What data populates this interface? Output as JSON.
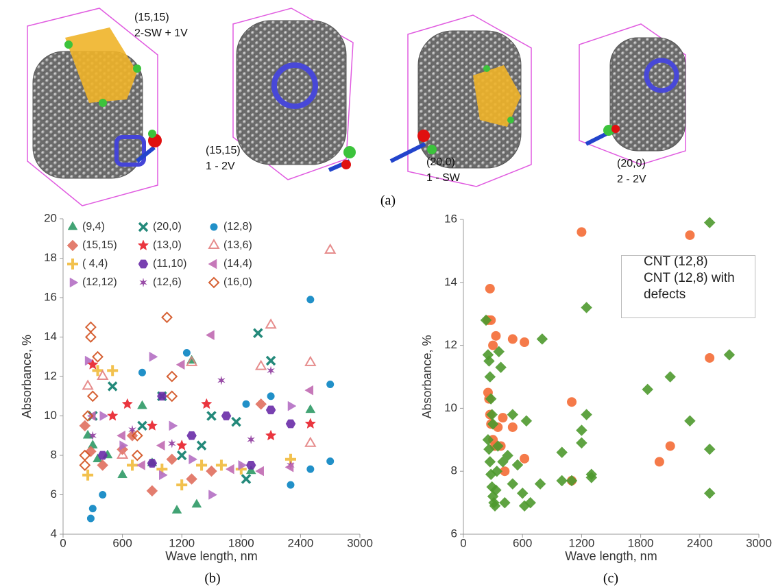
{
  "panel_a": {
    "label": "(a)",
    "structures": [
      {
        "lines": [
          "(15,15)",
          "2-SW + 1V"
        ]
      },
      {
        "lines": [
          "(15,15)",
          "1 - 2V"
        ]
      },
      {
        "lines": [
          "(20,0)",
          "1 - SW"
        ]
      },
      {
        "lines": [
          "(20,0)",
          "2 - 2V"
        ]
      }
    ]
  },
  "chart_data": [
    {
      "type": "scatter",
      "panel_label": "(b)",
      "x_label": "Wave length, nm",
      "y_label": "Absorbance, %",
      "xlim": [
        0,
        3000
      ],
      "xticks": [
        0,
        600,
        1200,
        1800,
        2400,
        3000
      ],
      "ylim": [
        4,
        20
      ],
      "yticks": [
        4,
        6,
        8,
        10,
        12,
        14,
        16,
        18,
        20
      ],
      "legend": "top-left",
      "series": [
        {
          "name": "(9,4)",
          "color": "#2e9a66",
          "marker": "triangle",
          "x": [
            250,
            300,
            350,
            450,
            600,
            800,
            900,
            1150,
            1300,
            1350,
            2500,
            1900
          ],
          "values": [
            9,
            8.5,
            7.8,
            8,
            7,
            10.5,
            7.6,
            5.2,
            12.8,
            5.5,
            10.3,
            7.2
          ]
        },
        {
          "name": "(15,15)",
          "color": "#e0705f",
          "marker": "diamond",
          "x": [
            220,
            280,
            400,
            600,
            900,
            1100,
            1500,
            2000,
            1300,
            700
          ],
          "values": [
            9.5,
            8.2,
            7.5,
            8.3,
            6.2,
            7.8,
            7.2,
            10.6,
            6.8,
            9
          ]
        },
        {
          "name": "( 4,4)",
          "color": "#f2c14e",
          "marker": "plus",
          "x": [
            250,
            350,
            500,
            700,
            1000,
            1400,
            1600,
            1800,
            2300,
            1200
          ],
          "values": [
            7,
            12.3,
            12.3,
            7.5,
            7.3,
            7.5,
            7.5,
            7.3,
            7.8,
            6.5
          ]
        },
        {
          "name": "(12,12)",
          "color": "#b46fc4",
          "marker": "right",
          "x": [
            250,
            400,
            600,
            900,
            1100,
            1300,
            1500,
            1800,
            2300,
            1000
          ],
          "values": [
            12.8,
            10,
            8.5,
            13,
            9.5,
            7.8,
            6,
            7.5,
            10.5,
            7
          ]
        },
        {
          "name": "(20,0)",
          "color": "#23897a",
          "marker": "x",
          "x": [
            300,
            500,
            800,
            1000,
            1200,
            1400,
            1750,
            1850,
            1970,
            2100,
            1500
          ],
          "values": [
            10,
            11.5,
            9.5,
            11,
            8,
            8.5,
            9.7,
            6.8,
            14.2,
            12.8,
            10
          ]
        },
        {
          "name": "(13,0)",
          "color": "#e8202a",
          "marker": "star",
          "x": [
            300,
            500,
            650,
            900,
            1200,
            1450,
            2100,
            2500
          ],
          "values": [
            12.6,
            10,
            10.6,
            9.5,
            8.5,
            10.6,
            9,
            9.6
          ]
        },
        {
          "name": "(11,10)",
          "color": "#6a2ca8",
          "marker": "hexagon",
          "x": [
            400,
            900,
            1300,
            1650,
            1900,
            2100,
            2300,
            1000
          ],
          "values": [
            8,
            7.6,
            9,
            10,
            7.5,
            10.3,
            9.6,
            11
          ]
        },
        {
          "name": "(12,6)",
          "color": "#8e3a9e",
          "marker": "star-small",
          "x": [
            300,
            700,
            1100,
            1600,
            1900,
            2100,
            2300
          ],
          "values": [
            9,
            9.3,
            8.6,
            11.8,
            8.8,
            12.3,
            7.5
          ]
        },
        {
          "name": "(12,8)",
          "color": "#2190c8",
          "marker": "circle-cross",
          "x": [
            280,
            300,
            400,
            800,
            1250,
            1850,
            2100,
            2500,
            2700,
            2500,
            2300,
            2700
          ],
          "values": [
            4.8,
            5.3,
            6,
            12.2,
            13.2,
            10.6,
            11,
            15.9,
            11.6,
            7.3,
            6.5,
            7.7
          ]
        },
        {
          "name": "(13,6)",
          "color": "#e37f7f",
          "marker": "triangle-open",
          "x": [
            250,
            400,
            2100,
            2000,
            2500,
            2500,
            2700,
            1300,
            600
          ],
          "values": [
            11.5,
            12,
            14.6,
            12.5,
            12.7,
            8.6,
            18.4,
            12.7,
            8
          ]
        },
        {
          "name": "(14,4)",
          "color": "#c06ab2",
          "marker": "left",
          "x": [
            300,
            600,
            800,
            1000,
            1200,
            1500,
            1700,
            2500,
            2300,
            2000
          ],
          "values": [
            10,
            9,
            7.5,
            8.5,
            12.6,
            14.1,
            7.3,
            11.3,
            7.4,
            7.2
          ]
        },
        {
          "name": "(16,0)",
          "color": "#d2501e",
          "marker": "diamond-open",
          "x": [
            220,
            220,
            250,
            280,
            280,
            300,
            350,
            750,
            1050,
            1100,
            1100,
            750
          ],
          "values": [
            7.5,
            8,
            10,
            14.5,
            14,
            11,
            13,
            9,
            15,
            11,
            12,
            8
          ]
        }
      ]
    },
    {
      "type": "scatter",
      "panel_label": "(c)",
      "x_label": "Wave length, nm",
      "y_label": "Absorbance, %",
      "xlim": [
        0,
        3000
      ],
      "xticks": [
        0,
        600,
        1200,
        1800,
        2400,
        3000
      ],
      "ylim": [
        6,
        16
      ],
      "yticks": [
        6,
        8,
        10,
        12,
        14,
        16
      ],
      "legend": "top-right",
      "series": [
        {
          "name": "CNT (12,8)",
          "color": "#f4733f",
          "marker": "circle",
          "x": [
            250,
            270,
            280,
            250,
            260,
            270,
            280,
            300,
            300,
            320,
            330,
            350,
            380,
            400,
            420,
            500,
            500,
            620,
            620,
            1100,
            1100,
            1200,
            1990,
            2100,
            2300,
            2500
          ],
          "values": [
            12.8,
            13.8,
            12.8,
            10.5,
            10.3,
            9.8,
            9.5,
            12,
            9,
            8.8,
            12.3,
            9.4,
            8.8,
            9.7,
            8,
            12.2,
            9.4,
            12.1,
            8.4,
            10.2,
            7.7,
            15.6,
            8.3,
            8.8,
            15.5,
            11.6
          ]
        },
        {
          "name": "CNT (12,8) with defects",
          "color": "#4e9a2e",
          "marker": "diamond",
          "x": [
            230,
            250,
            260,
            270,
            280,
            290,
            300,
            250,
            260,
            270,
            280,
            290,
            300,
            310,
            320,
            330,
            340,
            350,
            360,
            380,
            400,
            420,
            450,
            500,
            500,
            550,
            600,
            620,
            640,
            680,
            800,
            780,
            1000,
            1000,
            1100,
            1200,
            1200,
            1250,
            1250,
            1300,
            1300,
            1870,
            2100,
            2300,
            2500,
            2500,
            2500,
            2700
          ],
          "values": [
            12.8,
            11.7,
            11.5,
            11,
            10.3,
            9.8,
            9.5,
            9,
            8.7,
            8.3,
            7.9,
            7.5,
            7.2,
            7,
            6.9,
            7.4,
            8,
            8.8,
            11.8,
            11.3,
            8.3,
            7,
            8.5,
            9.8,
            7.6,
            8.2,
            7.3,
            6.9,
            9.6,
            7,
            12.2,
            7.6,
            8.6,
            7.7,
            7.7,
            8.9,
            9.3,
            13.2,
            9.8,
            7.8,
            7.9,
            10.6,
            11,
            9.6,
            15.9,
            8.7,
            7.3,
            11.7
          ]
        }
      ]
    }
  ]
}
